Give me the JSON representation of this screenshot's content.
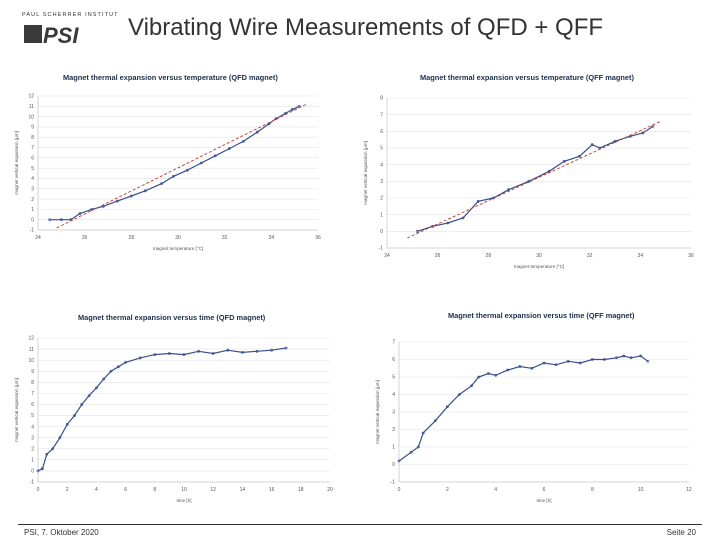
{
  "header": {
    "institute": "PAUL SCHERRER INSTITUT",
    "logo_text": "PSI",
    "title": "Vibrating Wire Measurements of QFD + QFF"
  },
  "footer": {
    "left": "PSI, 7. Oktober 2020",
    "right": "Seite 20"
  },
  "colors": {
    "data": "#3a4f8c",
    "fit": "#c0392b",
    "grid": "#e3e3e3",
    "title": "#1f2e4a"
  },
  "chart_data": [
    {
      "id": "qfd-temp",
      "type": "scatter",
      "title": "Magnet thermal expansion versus temperature (QFD magnet)",
      "xlabel": "magnet temperature [°C]",
      "ylabel": "magnet vertical expansion [µm]",
      "xlim": [
        24,
        36
      ],
      "ylim": [
        -1,
        12
      ],
      "xticks": [
        24,
        26,
        28,
        30,
        32,
        34,
        36
      ],
      "yticks": [
        -1,
        0,
        1,
        2,
        3,
        4,
        5,
        6,
        7,
        8,
        9,
        10,
        11,
        12
      ],
      "points": [
        [
          24.5,
          0
        ],
        [
          25.0,
          0
        ],
        [
          25.4,
          0
        ],
        [
          25.8,
          0.6
        ],
        [
          26.3,
          1
        ],
        [
          26.8,
          1.3
        ],
        [
          27.4,
          1.8
        ],
        [
          28.0,
          2.3
        ],
        [
          28.6,
          2.8
        ],
        [
          29.3,
          3.5
        ],
        [
          29.8,
          4.2
        ],
        [
          30.4,
          4.8
        ],
        [
          31.0,
          5.5
        ],
        [
          31.6,
          6.2
        ],
        [
          32.2,
          6.9
        ],
        [
          32.8,
          7.6
        ],
        [
          33.4,
          8.5
        ],
        [
          33.9,
          9.3
        ],
        [
          34.2,
          9.8
        ],
        [
          34.6,
          10.3
        ],
        [
          34.9,
          10.7
        ],
        [
          35.2,
          11
        ]
      ],
      "fit": {
        "name": "linear fit",
        "points": [
          [
            24.8,
            -0.8
          ],
          [
            35.5,
            11.2
          ]
        ]
      }
    },
    {
      "id": "qff-temp",
      "type": "scatter",
      "title": "Magnet thermal expansion versus temperature (QFF magnet)",
      "xlabel": "magnet temperature [°C]",
      "ylabel": "magnet vertical expansion [µm]",
      "xlim": [
        24,
        36
      ],
      "ylim": [
        -1,
        8
      ],
      "xticks": [
        24,
        26,
        28,
        30,
        32,
        34,
        36
      ],
      "yticks": [
        -1,
        0,
        1,
        2,
        3,
        4,
        5,
        6,
        7,
        8
      ],
      "points": [
        [
          25.2,
          0
        ],
        [
          25.8,
          0.3
        ],
        [
          26.4,
          0.5
        ],
        [
          27.0,
          0.8
        ],
        [
          27.6,
          1.8
        ],
        [
          28.2,
          2.0
        ],
        [
          28.8,
          2.5
        ],
        [
          29.6,
          3.0
        ],
        [
          30.4,
          3.6
        ],
        [
          31.0,
          4.2
        ],
        [
          31.6,
          4.5
        ],
        [
          32.1,
          5.2
        ],
        [
          32.4,
          5.0
        ],
        [
          33.0,
          5.4
        ],
        [
          33.6,
          5.7
        ],
        [
          34.1,
          5.9
        ],
        [
          34.5,
          6.3
        ]
      ],
      "fit": {
        "name": "linear fit",
        "points": [
          [
            24.8,
            -0.4
          ],
          [
            34.8,
            6.6
          ]
        ]
      }
    },
    {
      "id": "qfd-time",
      "type": "scatter",
      "title": "Magnet thermal expansion versus time (QFD magnet)",
      "xlabel": "time [h]",
      "ylabel": "magnet vertical expansion [µm]",
      "xlim": [
        0,
        20
      ],
      "ylim": [
        -1,
        12
      ],
      "xticks": [
        0,
        2,
        4,
        6,
        8,
        10,
        12,
        14,
        16,
        18,
        20
      ],
      "yticks": [
        -1,
        0,
        1,
        2,
        3,
        4,
        5,
        6,
        7,
        8,
        9,
        10,
        11,
        12
      ],
      "points": [
        [
          0,
          0
        ],
        [
          0.3,
          0.2
        ],
        [
          0.6,
          1.5
        ],
        [
          1,
          2
        ],
        [
          1.5,
          3
        ],
        [
          2,
          4.2
        ],
        [
          2.5,
          5
        ],
        [
          3,
          6
        ],
        [
          3.5,
          6.8
        ],
        [
          4,
          7.5
        ],
        [
          4.5,
          8.3
        ],
        [
          5,
          9
        ],
        [
          5.5,
          9.4
        ],
        [
          6,
          9.8
        ],
        [
          7,
          10.2
        ],
        [
          8,
          10.5
        ],
        [
          9,
          10.6
        ],
        [
          10,
          10.5
        ],
        [
          11,
          10.8
        ],
        [
          12,
          10.6
        ],
        [
          13,
          10.9
        ],
        [
          14,
          10.7
        ],
        [
          15,
          10.8
        ],
        [
          16,
          10.9
        ],
        [
          17,
          11.1
        ]
      ]
    },
    {
      "id": "qff-time",
      "type": "scatter",
      "title": "Magnet thermal expansion versus time (QFF magnet)",
      "xlabel": "time [h]",
      "ylabel": "magnet vertical expansion [µm]",
      "xlim": [
        0,
        12
      ],
      "ylim": [
        -1,
        7
      ],
      "xticks": [
        0,
        2,
        4,
        6,
        8,
        10,
        12
      ],
      "yticks": [
        -1,
        0,
        1,
        2,
        3,
        4,
        5,
        6,
        7
      ],
      "points": [
        [
          0,
          0.2
        ],
        [
          0.5,
          0.7
        ],
        [
          0.8,
          1.0
        ],
        [
          1,
          1.8
        ],
        [
          1.5,
          2.5
        ],
        [
          2,
          3.3
        ],
        [
          2.5,
          4.0
        ],
        [
          3,
          4.5
        ],
        [
          3.3,
          5.0
        ],
        [
          3.7,
          5.2
        ],
        [
          4,
          5.1
        ],
        [
          4.5,
          5.4
        ],
        [
          5,
          5.6
        ],
        [
          5.5,
          5.5
        ],
        [
          6,
          5.8
        ],
        [
          6.5,
          5.7
        ],
        [
          7,
          5.9
        ],
        [
          7.5,
          5.8
        ],
        [
          8,
          6.0
        ],
        [
          8.5,
          6.0
        ],
        [
          9,
          6.1
        ],
        [
          9.3,
          6.2
        ],
        [
          9.6,
          6.1
        ],
        [
          10,
          6.2
        ],
        [
          10.3,
          5.9
        ]
      ]
    }
  ]
}
